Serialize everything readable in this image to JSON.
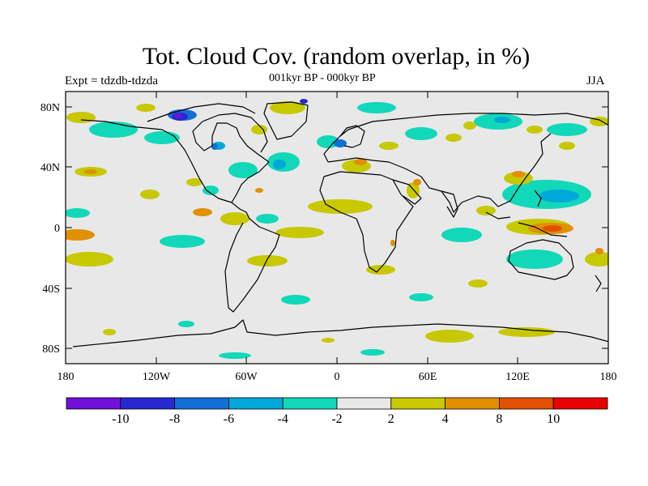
{
  "title": "Tot. Cloud Cov. (random overlap, in %)",
  "experiment": "Expt = tdzdb-tdzda",
  "period": "001kyr BP - 000kyr BP",
  "season": "JJA",
  "lat_ticks": [
    "80N",
    "40N",
    "0",
    "40S",
    "80S"
  ],
  "lon_ticks": [
    "180",
    "120W",
    "60W",
    "0",
    "60E",
    "120E",
    "180"
  ],
  "colorbar": {
    "colors": [
      "#7010d8",
      "#2828d0",
      "#1070d8",
      "#00a8d8",
      "#10d8b8",
      "#e8e8e8",
      "#c8c800",
      "#e09000",
      "#e05000",
      "#e80000"
    ],
    "labels": [
      "-10",
      "-8",
      "-6",
      "-4",
      "-2",
      "2",
      "4",
      "8",
      "10"
    ]
  },
  "colors": {
    "land_outline": "#000000",
    "background_field": "#e8e8e8"
  }
}
